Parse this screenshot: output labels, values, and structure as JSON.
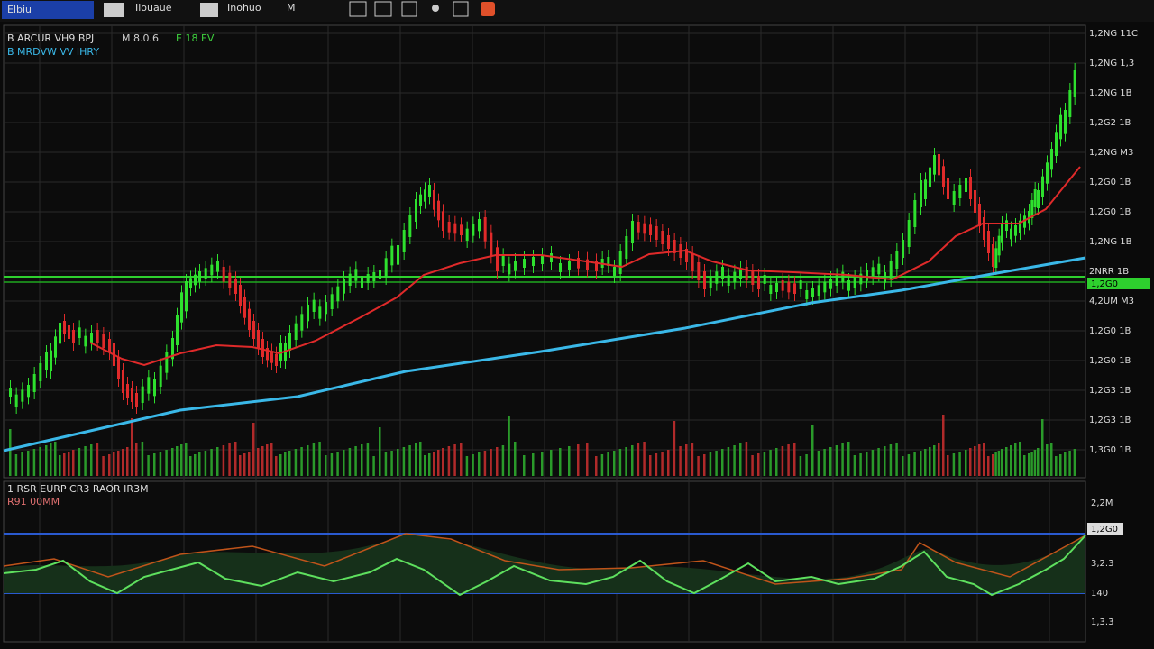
{
  "toolbar": {
    "badge": "Elbiu",
    "items": [
      "Ilouaue",
      "Inohuo",
      "M"
    ]
  },
  "legend": {
    "line1": "B ARCUR VH9 BPJ",
    "line1_b": "M 8.0.6",
    "line1_c": "E 18 EV",
    "line2": "B MRDVW VV IHRY"
  },
  "price_axis": [
    "1,2NG 11C",
    "1,2NG 1,3",
    "1,2NG 1B",
    "1,2G2 1B",
    "1,2NG M3",
    "1,2G0 1B",
    "1,2G0 1B",
    "1,2NG 1B",
    "2NRR 1B",
    "4,2UM M3",
    "1,2G0 1B",
    "1,2G0 1B",
    "1,2G3 1B",
    "1,2G3 1B",
    "1,3G0 1B"
  ],
  "price_marker": "1,2G0",
  "indicator": {
    "title": "1 RSR EURP CR3 RAOR IR3M",
    "subtitle": "R91 00MM",
    "axis": [
      "2,2M",
      "3,2.3",
      "140",
      "1,3.3"
    ],
    "marker": "1,2G0"
  }
}
